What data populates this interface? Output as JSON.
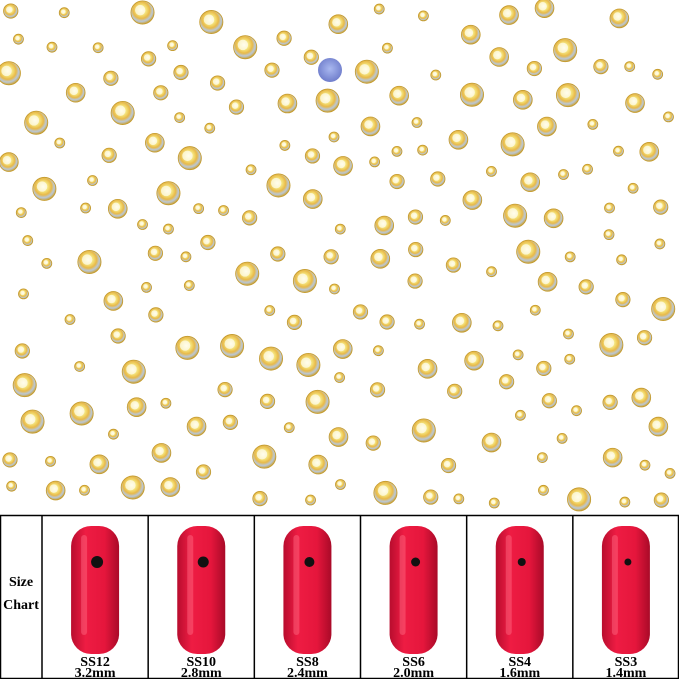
{
  "size_chart": {
    "heading": [
      "Size",
      "Chart"
    ],
    "sizes": [
      {
        "code": "SS12",
        "diameter": "3.2mm"
      },
      {
        "code": "SS10",
        "diameter": "2.8mm"
      },
      {
        "code": "SS8",
        "diameter": "2.4mm"
      },
      {
        "code": "SS6",
        "diameter": "2.0mm"
      },
      {
        "code": "SS4",
        "diameter": "1.6mm"
      },
      {
        "code": "SS3",
        "diameter": "1.4mm"
      }
    ]
  }
}
